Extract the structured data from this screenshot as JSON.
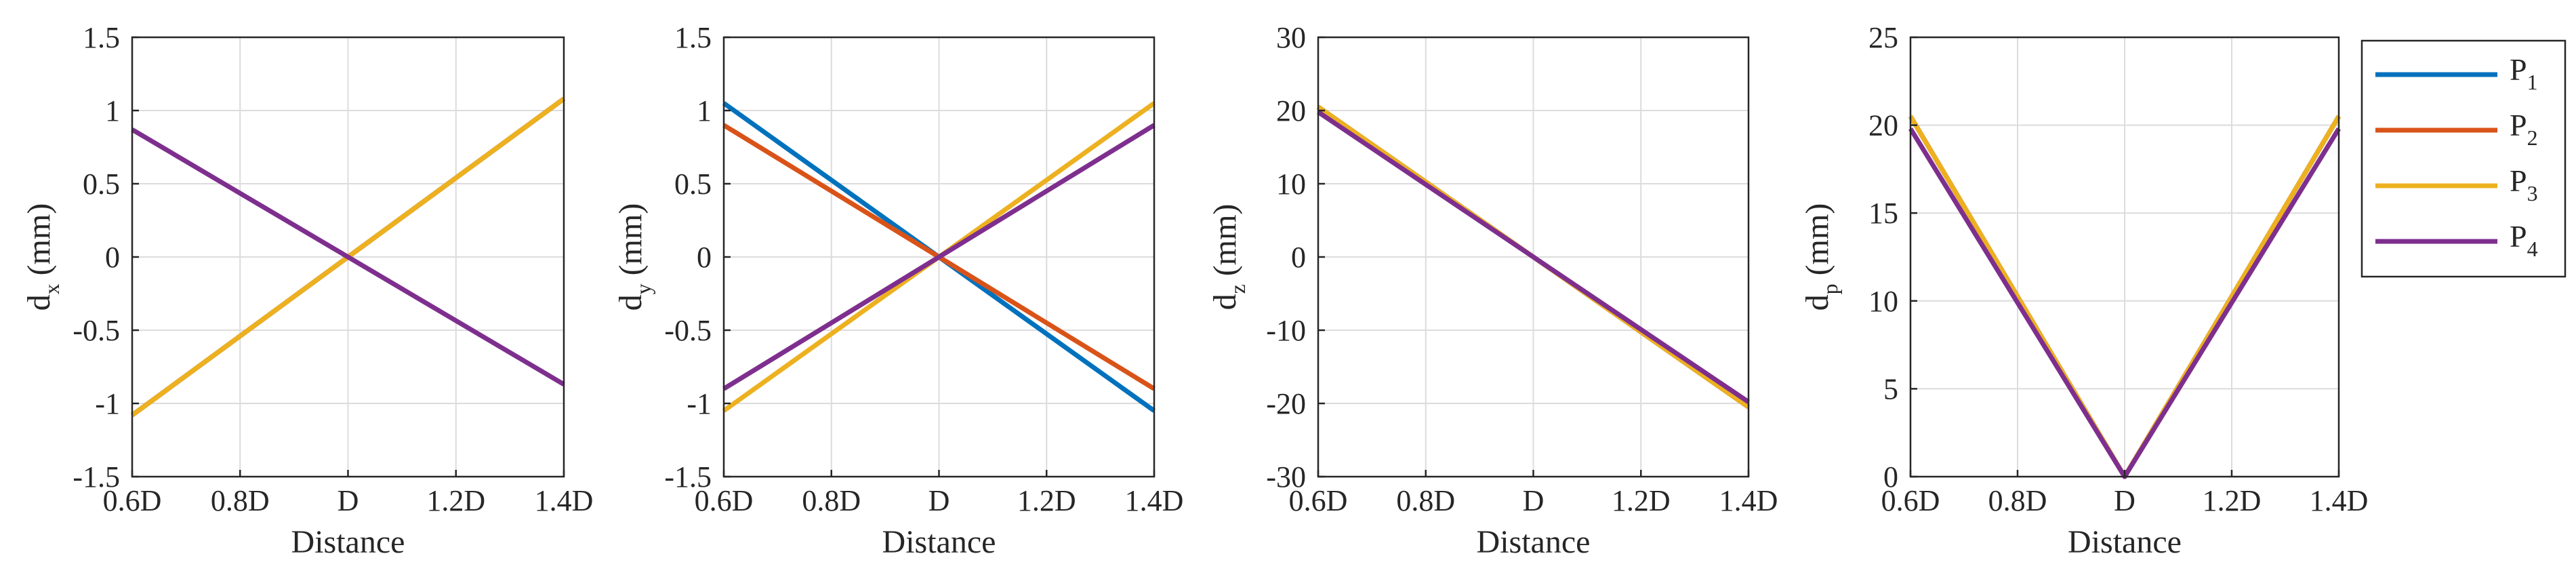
{
  "colors": {
    "P1": "#0072BD",
    "P2": "#D95319",
    "P3": "#EDB120",
    "P4": "#7E2F8E",
    "grid": "#DCDCDC",
    "axis": "#262626"
  },
  "legend": {
    "entries": [
      {
        "key": "P1",
        "base": "P",
        "sub": "1"
      },
      {
        "key": "P2",
        "base": "P",
        "sub": "2"
      },
      {
        "key": "P3",
        "base": "P",
        "sub": "3"
      },
      {
        "key": "P4",
        "base": "P",
        "sub": "4"
      }
    ]
  },
  "chart_data": [
    {
      "type": "line",
      "xlabel": "Distance",
      "ylabel_base": "d",
      "ylabel_sub": "x",
      "ylabel_unit": " (mm)",
      "x": [
        0.6,
        1.4
      ],
      "xlim": [
        0.6,
        1.4
      ],
      "xticks": [
        0.6,
        0.8,
        1.0,
        1.2,
        1.4
      ],
      "xtick_labels": [
        "0.6D",
        "0.8D",
        "D",
        "1.2D",
        "1.4D"
      ],
      "ylim": [
        -1.5,
        1.5
      ],
      "yticks": [
        -1.5,
        -1,
        -0.5,
        0,
        0.5,
        1,
        1.5
      ],
      "ytick_labels": [
        "-1.5",
        "-1",
        "-0.5",
        "0",
        "0.5",
        "1",
        "1.5"
      ],
      "grid": true,
      "series": [
        {
          "name": "P1",
          "x": [
            0.6,
            1.0,
            1.4
          ],
          "y": [
            -1.08,
            0,
            1.08
          ]
        },
        {
          "name": "P2",
          "x": [
            0.6,
            1.0,
            1.4
          ],
          "y": [
            -1.08,
            0,
            1.08
          ]
        },
        {
          "name": "P3",
          "x": [
            0.6,
            1.0,
            1.4
          ],
          "y": [
            -1.08,
            0,
            1.08
          ]
        },
        {
          "name": "P4",
          "x": [
            0.6,
            1.0,
            1.4
          ],
          "y": [
            0.87,
            0,
            -0.87
          ]
        }
      ]
    },
    {
      "type": "line",
      "xlabel": "Distance",
      "ylabel_base": "d",
      "ylabel_sub": "y",
      "ylabel_unit": " (mm)",
      "xlim": [
        0.6,
        1.4
      ],
      "xticks": [
        0.6,
        0.8,
        1.0,
        1.2,
        1.4
      ],
      "xtick_labels": [
        "0.6D",
        "0.8D",
        "D",
        "1.2D",
        "1.4D"
      ],
      "ylim": [
        -1.5,
        1.5
      ],
      "yticks": [
        -1.5,
        -1,
        -0.5,
        0,
        0.5,
        1,
        1.5
      ],
      "ytick_labels": [
        "-1.5",
        "-1",
        "-0.5",
        "0",
        "0.5",
        "1",
        "1.5"
      ],
      "grid": true,
      "series": [
        {
          "name": "P1",
          "x": [
            0.6,
            1.0,
            1.4
          ],
          "y": [
            1.05,
            0,
            -1.05
          ]
        },
        {
          "name": "P2",
          "x": [
            0.6,
            1.0,
            1.4
          ],
          "y": [
            0.9,
            0,
            -0.9
          ]
        },
        {
          "name": "P3",
          "x": [
            0.6,
            1.0,
            1.4
          ],
          "y": [
            -1.05,
            0,
            1.05
          ]
        },
        {
          "name": "P4",
          "x": [
            0.6,
            1.0,
            1.4
          ],
          "y": [
            -0.9,
            0,
            0.9
          ]
        }
      ]
    },
    {
      "type": "line",
      "xlabel": "Distance",
      "ylabel_base": "d",
      "ylabel_sub": "z",
      "ylabel_unit": " (mm)",
      "xlim": [
        0.6,
        1.4
      ],
      "xticks": [
        0.6,
        0.8,
        1.0,
        1.2,
        1.4
      ],
      "xtick_labels": [
        "0.6D",
        "0.8D",
        "D",
        "1.2D",
        "1.4D"
      ],
      "ylim": [
        -30,
        30
      ],
      "yticks": [
        -30,
        -20,
        -10,
        0,
        10,
        20,
        30
      ],
      "ytick_labels": [
        "-30",
        "-20",
        "-10",
        "0",
        "10",
        "20",
        "30"
      ],
      "grid": true,
      "series": [
        {
          "name": "P1",
          "x": [
            0.6,
            1.0,
            1.4
          ],
          "y": [
            20.5,
            0,
            -20.5
          ]
        },
        {
          "name": "P2",
          "x": [
            0.6,
            1.0,
            1.4
          ],
          "y": [
            20.5,
            0,
            -20.5
          ]
        },
        {
          "name": "P3",
          "x": [
            0.6,
            1.0,
            1.4
          ],
          "y": [
            20.5,
            0,
            -20.5
          ]
        },
        {
          "name": "P4",
          "x": [
            0.6,
            1.0,
            1.4
          ],
          "y": [
            19.8,
            0,
            -19.8
          ]
        }
      ]
    },
    {
      "type": "line",
      "xlabel": "Distance",
      "ylabel_base": "d",
      "ylabel_sub": "p",
      "ylabel_unit": " (mm)",
      "xlim": [
        0.6,
        1.4
      ],
      "xticks": [
        0.6,
        0.8,
        1.0,
        1.2,
        1.4
      ],
      "xtick_labels": [
        "0.6D",
        "0.8D",
        "D",
        "1.2D",
        "1.4D"
      ],
      "ylim": [
        0,
        25
      ],
      "yticks": [
        0,
        5,
        10,
        15,
        20,
        25
      ],
      "ytick_labels": [
        "0",
        "5",
        "10",
        "15",
        "20",
        "25"
      ],
      "grid": true,
      "series": [
        {
          "name": "P1",
          "x": [
            0.6,
            1.0,
            1.4
          ],
          "y": [
            20.5,
            0,
            20.5
          ]
        },
        {
          "name": "P2",
          "x": [
            0.6,
            1.0,
            1.4
          ],
          "y": [
            20.5,
            0,
            20.5
          ]
        },
        {
          "name": "P3",
          "x": [
            0.6,
            1.0,
            1.4
          ],
          "y": [
            20.5,
            0,
            20.5
          ]
        },
        {
          "name": "P4",
          "x": [
            0.6,
            1.0,
            1.4
          ],
          "y": [
            19.8,
            0,
            19.8
          ]
        }
      ]
    }
  ]
}
